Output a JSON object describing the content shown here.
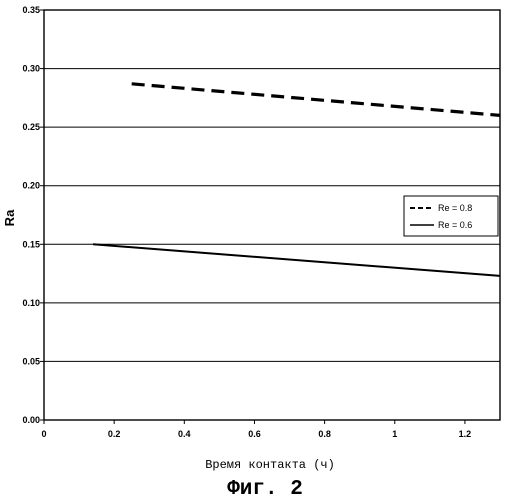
{
  "chart_data": {
    "type": "line",
    "xlabel": "Время контакта (ч)",
    "ylabel": "Ra",
    "caption": "Фиг. 2",
    "xlim": [
      0,
      1.3
    ],
    "ylim": [
      0,
      0.35
    ],
    "xticks": [
      "0",
      "0.2",
      "0.4",
      "0.6",
      "0.8",
      "1",
      "1.2"
    ],
    "yticks": [
      "0.00",
      "0.05",
      "0.10",
      "0.15",
      "0.20",
      "0.25",
      "0.30",
      "0.35"
    ],
    "grid": "horizontal",
    "legend_position": "right",
    "series": [
      {
        "name": "Re = 0.8",
        "style": "dashed",
        "color": "#000000",
        "x": [
          0.25,
          1.3
        ],
        "y": [
          0.287,
          0.26
        ]
      },
      {
        "name": "Re = 0.6",
        "style": "solid",
        "color": "#000000",
        "x": [
          0.14,
          1.3
        ],
        "y": [
          0.15,
          0.123
        ]
      }
    ]
  }
}
